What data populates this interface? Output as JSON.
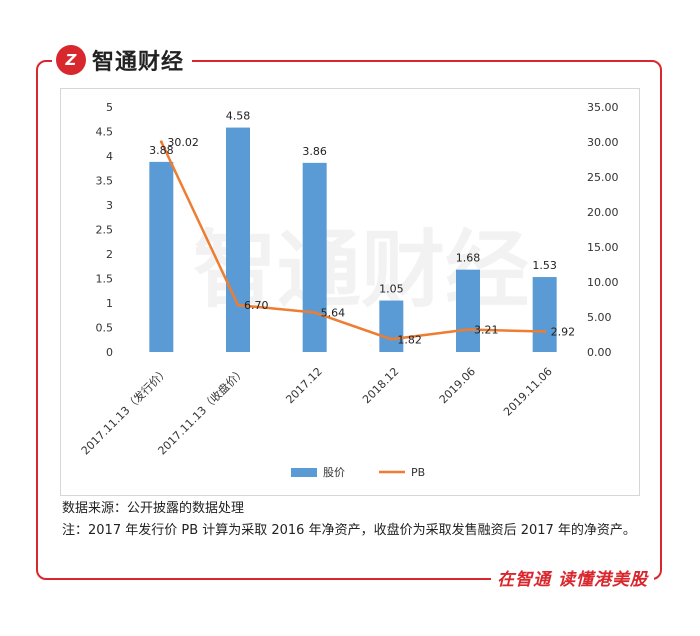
{
  "brand": {
    "logo_mark": "Z",
    "name": "智通财经"
  },
  "chart_data": {
    "type": "bar+line",
    "categories": [
      "2017.11.13（发行价）",
      "2017.11.13（收盘价）",
      "2017.12",
      "2018.12",
      "2019.06",
      "2019.11.06"
    ],
    "series": [
      {
        "name": "股价",
        "type": "bar",
        "axis": "left",
        "color": "#5b9bd5",
        "values": [
          3.88,
          4.58,
          3.86,
          1.05,
          1.68,
          1.53
        ],
        "labels": [
          "3.88",
          "4.58",
          "3.86",
          "1.05",
          "1.68",
          "1.53"
        ]
      },
      {
        "name": "PB",
        "type": "line",
        "axis": "right",
        "color": "#ed7d31",
        "values": [
          30.02,
          6.7,
          5.64,
          1.82,
          3.21,
          2.92
        ],
        "labels": [
          "30.02",
          "6.70",
          "5.64",
          "1.82",
          "3.21",
          "2.92"
        ]
      }
    ],
    "y_left": {
      "min": 0,
      "max": 5,
      "ticks": [
        "0",
        "0.5",
        "1",
        "1.5",
        "2",
        "2.5",
        "3",
        "3.5",
        "4",
        "4.5",
        "5"
      ]
    },
    "y_right": {
      "min": 0,
      "max": 35,
      "ticks": [
        "0.00",
        "5.00",
        "10.00",
        "15.00",
        "20.00",
        "25.00",
        "30.00",
        "35.00"
      ]
    },
    "grid": false,
    "legend_position": "bottom"
  },
  "notes": {
    "source": "数据来源：公开披露的数据处理",
    "footnote": "注：2017 年发行价 PB 计算为采取 2016 年净资产，收盘价为采取发售融资后 2017 年的净资产。"
  },
  "footer": {
    "slogan": "在智通  读懂港美股"
  },
  "watermark": "智通财经"
}
